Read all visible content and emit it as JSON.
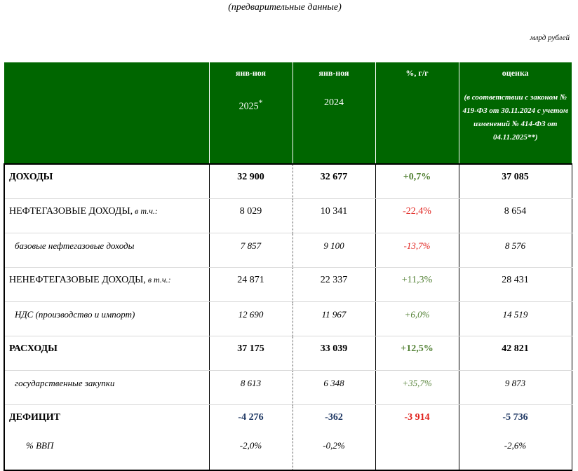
{
  "header": {
    "subtitle": "(предварительные данные)",
    "units": "млрд рублей"
  },
  "columns": {
    "col1": {
      "label": "янв-ноя",
      "year": "2025",
      "mark": "*"
    },
    "col2": {
      "label": "янв-ноя",
      "year": "2024"
    },
    "col3": {
      "label": "%, г/г"
    },
    "col4": {
      "label": "оценка",
      "note": "(в соответствии с законом № 419-ФЗ от 30.11.2024 с учетом изменений № 414-ФЗ от 04.11.2025**)"
    }
  },
  "rows": [
    {
      "label": "ДОХОДЫ",
      "qualifier": "",
      "v2025": "32 900",
      "v2024": "32 677",
      "pct": "+0,7%",
      "est": "37 085"
    },
    {
      "label": "НЕФТЕГАЗОВЫЕ ДОХОДЫ,",
      "qualifier": " в т.ч.:",
      "v2025": "8 029",
      "v2024": "10 341",
      "pct": "-22,4%",
      "est": "8 654"
    },
    {
      "label": "базовые нефтегазовые доходы",
      "qualifier": "",
      "v2025": "7 857",
      "v2024": "9 100",
      "pct": "-13,7%",
      "est": "8 576"
    },
    {
      "label": "НЕНЕФТЕГАЗОВЫЕ ДОХОДЫ,",
      "qualifier": " в т.ч.:",
      "v2025": "24 871",
      "v2024": "22 337",
      "pct": "+11,3%",
      "est": "28 431"
    },
    {
      "label": "НДС (производство и импорт)",
      "qualifier": "",
      "v2025": "12 690",
      "v2024": "11 967",
      "pct": "+6,0%",
      "est": "14 519"
    },
    {
      "label": "РАСХОДЫ",
      "qualifier": "",
      "v2025": "37 175",
      "v2024": "33 039",
      "pct": "+12,5%",
      "est": "42 821"
    },
    {
      "label": "государственные закупки",
      "qualifier": "",
      "v2025": "8 613",
      "v2024": "6 348",
      "pct": "+35,7%",
      "est": "9 873"
    },
    {
      "label": "ДЕФИЦИТ",
      "qualifier": "",
      "v2025": "-4 276",
      "v2024": "-362",
      "pct": "-3 914",
      "est": "-5 736"
    },
    {
      "label": "% ВВП",
      "qualifier": "",
      "v2025": "-2,0%",
      "v2024": "-0,2%",
      "pct": "",
      "est": "-2,6%"
    }
  ],
  "colors": {
    "header_bg": "#006600",
    "positive": "#538135",
    "negative": "#e0201b",
    "deficit": "#1f3864"
  }
}
